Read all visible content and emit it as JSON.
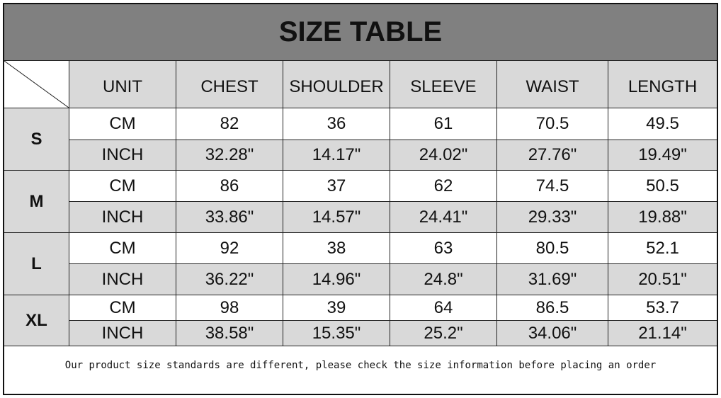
{
  "title": "SIZE TABLE",
  "headers": [
    "UNIT",
    "CHEST",
    "SHOULDER",
    "SLEEVE",
    "WAIST",
    "LENGTH"
  ],
  "sizes": [
    {
      "size": "S",
      "rows": [
        {
          "unit": "CM",
          "values": [
            "82",
            "36",
            "61",
            "70.5",
            "49.5"
          ]
        },
        {
          "unit": "INCH",
          "values": [
            "32.28\"",
            "14.17\"",
            "24.02\"",
            "27.76\"",
            "19.49\""
          ]
        }
      ]
    },
    {
      "size": "M",
      "rows": [
        {
          "unit": "CM",
          "values": [
            "86",
            "37",
            "62",
            "74.5",
            "50.5"
          ]
        },
        {
          "unit": "INCH",
          "values": [
            "33.86\"",
            "14.57\"",
            "24.41\"",
            "29.33\"",
            "19.88\""
          ]
        }
      ]
    },
    {
      "size": "L",
      "rows": [
        {
          "unit": "CM",
          "values": [
            "92",
            "38",
            "63",
            "80.5",
            "52.1"
          ]
        },
        {
          "unit": "INCH",
          "values": [
            "36.22\"",
            "14.96\"",
            "24.8\"",
            "31.69\"",
            "20.51\""
          ]
        }
      ]
    },
    {
      "size": "XL",
      "rows": [
        {
          "unit": "CM",
          "values": [
            "98",
            "39",
            "64",
            "86.5",
            "53.7"
          ]
        },
        {
          "unit": "INCH",
          "values": [
            "38.58\"",
            "15.35\"",
            "25.2\"",
            "34.06\"",
            "21.14\""
          ]
        }
      ]
    }
  ],
  "note": "Our product size standards are different, please check the size information before placing an order",
  "colors": {
    "title_bg": "#808080",
    "shaded": "#d9d9d9"
  }
}
